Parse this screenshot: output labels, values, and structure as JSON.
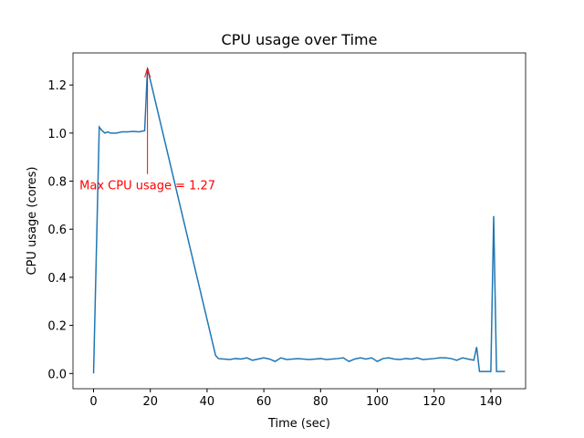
{
  "chart_data": {
    "type": "line",
    "title": "CPU usage over Time",
    "x_label": "Time (sec)",
    "y_label": "CPU usage (cores)",
    "x": [
      0,
      2,
      3,
      4,
      5,
      6,
      7,
      8,
      10,
      12,
      14,
      16,
      18,
      19,
      43,
      44,
      46,
      48,
      50,
      52,
      54,
      56,
      58,
      60,
      62,
      64,
      66,
      68,
      70,
      72,
      74,
      76,
      78,
      80,
      82,
      84,
      86,
      88,
      90,
      92,
      94,
      96,
      98,
      100,
      102,
      104,
      106,
      108,
      110,
      112,
      114,
      116,
      118,
      120,
      122,
      124,
      126,
      128,
      130,
      132,
      134,
      135,
      136,
      138,
      140,
      141,
      142,
      145
    ],
    "series": [
      {
        "color": "#1f77b4",
        "values": [
          0,
          1.025,
          1.01,
          1.0,
          1.005,
          1.0,
          1.0,
          1.0,
          1.005,
          1.005,
          1.007,
          1.005,
          1.01,
          1.27,
          0.075,
          0.062,
          0.06,
          0.058,
          0.062,
          0.06,
          0.065,
          0.055,
          0.06,
          0.065,
          0.06,
          0.05,
          0.065,
          0.058,
          0.06,
          0.062,
          0.06,
          0.058,
          0.06,
          0.062,
          0.058,
          0.06,
          0.062,
          0.065,
          0.05,
          0.06,
          0.065,
          0.06,
          0.065,
          0.05,
          0.062,
          0.065,
          0.06,
          0.058,
          0.062,
          0.06,
          0.065,
          0.058,
          0.06,
          0.062,
          0.065,
          0.065,
          0.062,
          0.055,
          0.065,
          0.06,
          0.055,
          0.11,
          0.008,
          0.008,
          0.008,
          0.655,
          0.008,
          0.008
        ]
      }
    ],
    "annotation": {
      "text": "Max CPU usage = 1.27",
      "color": "#ff0000"
    },
    "xlim": [
      -7.25,
      152.25
    ],
    "xticks": [
      0,
      20,
      40,
      60,
      80,
      100,
      120,
      140
    ],
    "ylim": [
      -0.0635,
      1.3335
    ],
    "yticks": [
      {
        "value": 0,
        "label": "0.0"
      },
      0.2,
      0.4,
      0.6,
      0.8,
      {
        "value": 1,
        "label": "1.0"
      },
      1.2
    ]
  }
}
